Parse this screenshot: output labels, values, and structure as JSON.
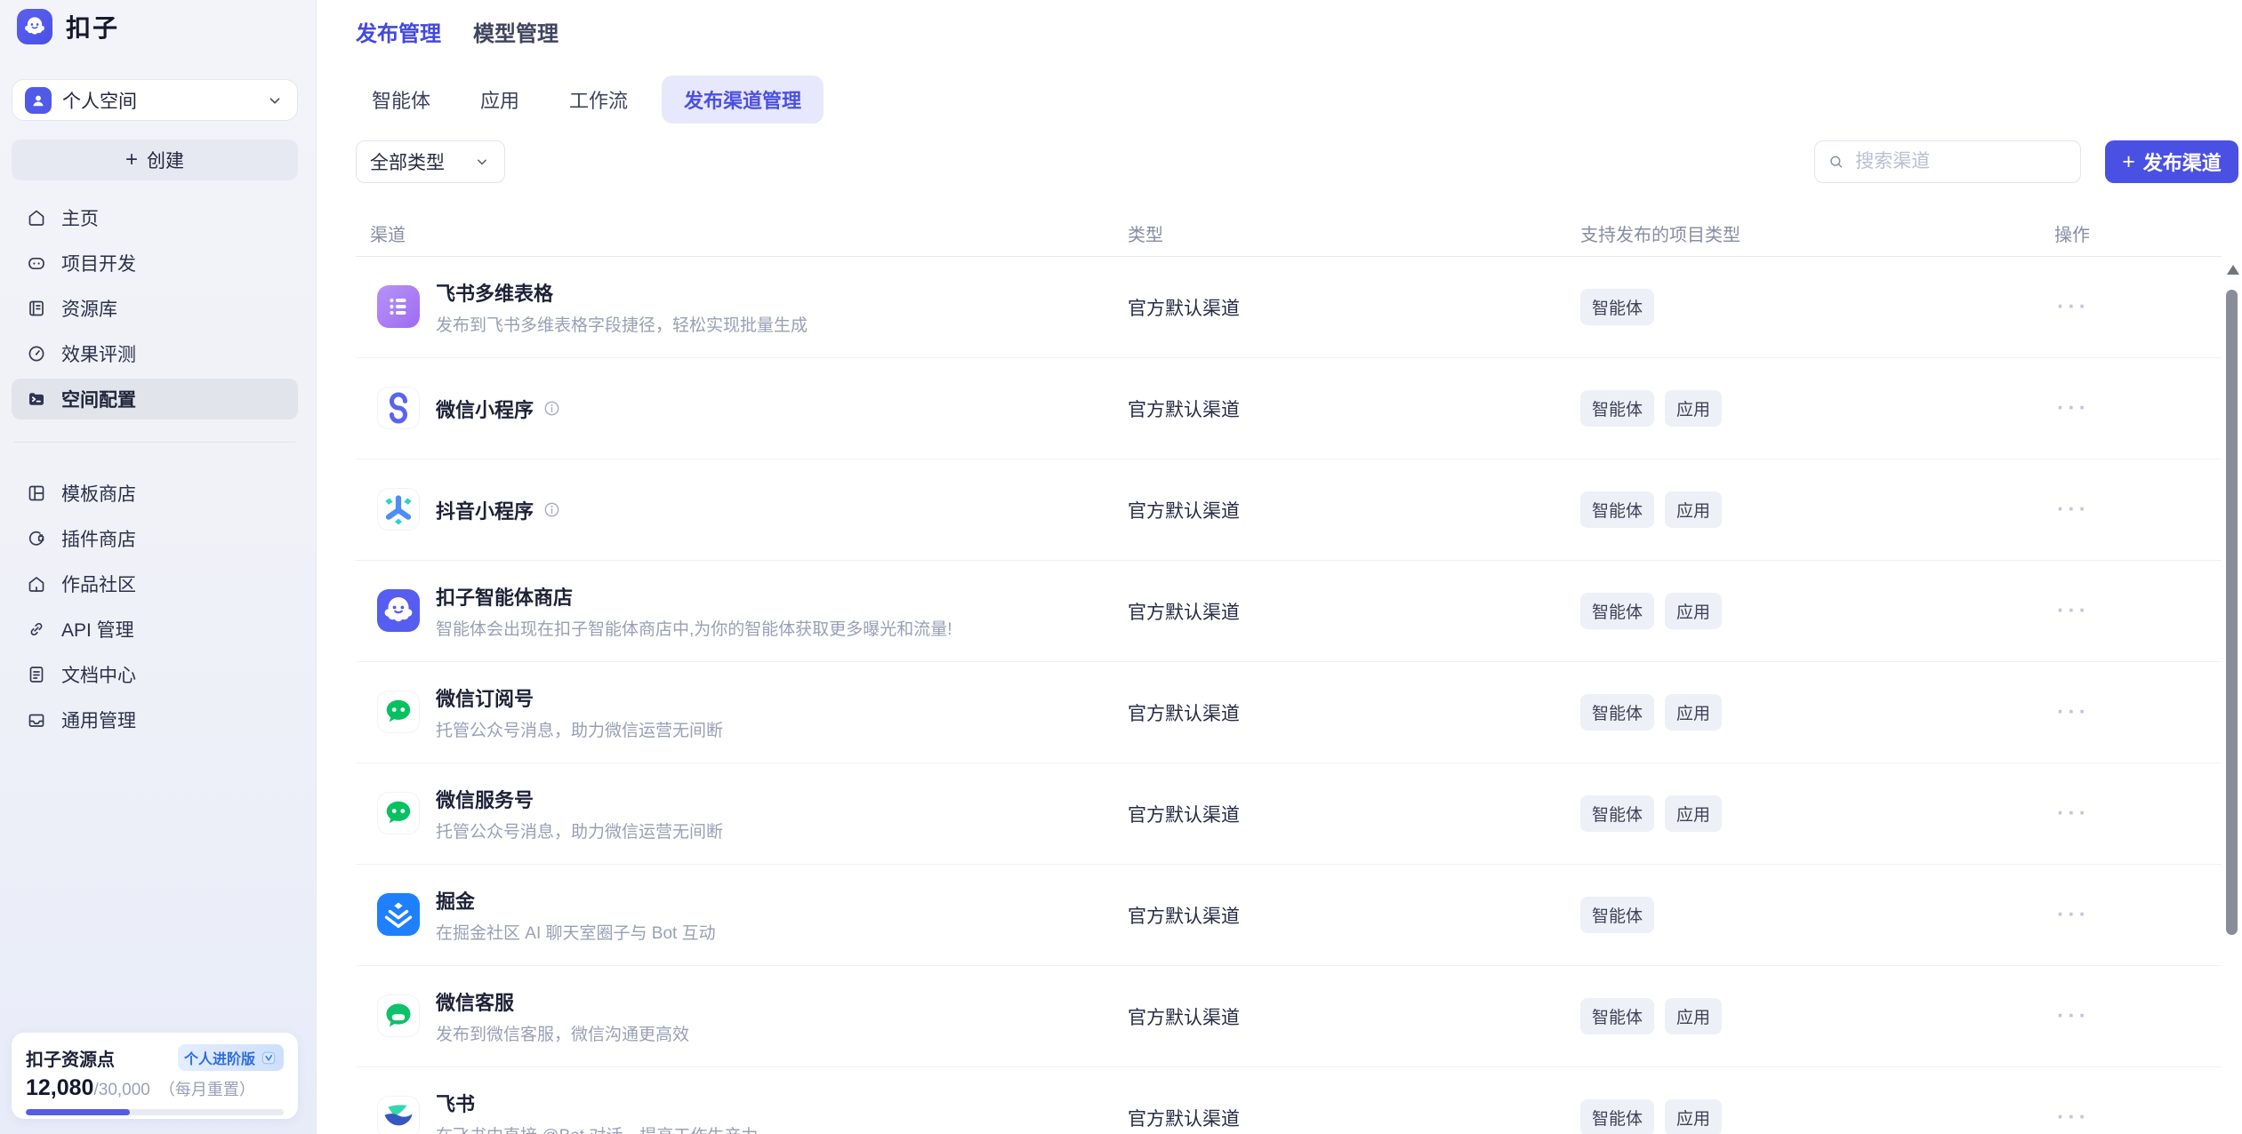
{
  "colors": {
    "accent": "#4B50E4",
    "tab_active_bg": "#E7E8FC",
    "sidebar_active_bg": "#E2E4EC",
    "wechat_green": "#07C160",
    "juejin_blue": "#1E80FF",
    "coze_indigo": "#575DF1",
    "feishu_base_purple": "#9E6BF3",
    "douyin_blue": "#4D8DF6",
    "douyin_cyan": "#2FD3C5",
    "feishu_teal": "#35D6AE",
    "feishu_navy": "#3757C0",
    "progress_fill": "#575CE5"
  },
  "sidebar": {
    "logo_title": "扣子",
    "workspace": {
      "label": "个人空间",
      "icon": "workspace-avatar"
    },
    "create": {
      "plus": "+",
      "label": "创建"
    },
    "menu_top": [
      {
        "label": "主页",
        "icon": "home-icon",
        "active": false
      },
      {
        "label": "项目开发",
        "icon": "bot-face-icon",
        "active": false
      },
      {
        "label": "资源库",
        "icon": "library-icon",
        "active": false
      },
      {
        "label": "效果评测",
        "icon": "gauge-icon",
        "active": false
      },
      {
        "label": "空间配置",
        "icon": "terminal-icon",
        "active": true
      }
    ],
    "menu_bottom": [
      {
        "label": "模板商店",
        "icon": "template-icon"
      },
      {
        "label": "插件商店",
        "icon": "plugin-icon"
      },
      {
        "label": "作品社区",
        "icon": "community-icon"
      },
      {
        "label": "API 管理",
        "icon": "api-link-icon"
      },
      {
        "label": "文档中心",
        "icon": "docs-icon"
      },
      {
        "label": "通用管理",
        "icon": "inbox-icon"
      }
    ],
    "resource_card": {
      "title": "扣子资源点",
      "badge": "个人进阶版",
      "used": "12,080",
      "total": "/30,000",
      "note": "（每月重置）",
      "progress_percent": 40.3
    }
  },
  "topnav": [
    {
      "label": "发布管理",
      "active": true
    },
    {
      "label": "模型管理",
      "active": false
    }
  ],
  "tabs": [
    {
      "label": "智能体",
      "active": false
    },
    {
      "label": "应用",
      "active": false
    },
    {
      "label": "工作流",
      "active": false
    },
    {
      "label": "发布渠道管理",
      "active": true
    }
  ],
  "controls": {
    "filter_value": "全部类型",
    "search_placeholder": "搜索渠道",
    "plus": "+",
    "publish_label": "发布渠道"
  },
  "table": {
    "headers": [
      "渠道",
      "类型",
      "支持发布的项目类型",
      "操作"
    ],
    "ellipsis": "···"
  },
  "channels": [
    {
      "name": "飞书多维表格",
      "desc": "发布到飞书多维表格字段捷径，轻松实现批量生成",
      "type": "官方默认渠道",
      "tags": [
        "智能体"
      ],
      "icon": "feishu-base-icon"
    },
    {
      "name": "微信小程序",
      "info": true,
      "type": "官方默认渠道",
      "tags": [
        "智能体",
        "应用"
      ],
      "icon": "wechat-miniprogram-icon"
    },
    {
      "name": "抖音小程序",
      "info": true,
      "type": "官方默认渠道",
      "tags": [
        "智能体",
        "应用"
      ],
      "icon": "douyin-miniprogram-icon"
    },
    {
      "name": "扣子智能体商店",
      "desc": "智能体会出现在扣子智能体商店中,为你的智能体获取更多曝光和流量!",
      "type": "官方默认渠道",
      "tags": [
        "智能体",
        "应用"
      ],
      "icon": "coze-store-icon"
    },
    {
      "name": "微信订阅号",
      "desc": "托管公众号消息，助力微信运营无间断",
      "type": "官方默认渠道",
      "tags": [
        "智能体",
        "应用"
      ],
      "icon": "wechat-subscription-icon"
    },
    {
      "name": "微信服务号",
      "desc": "托管公众号消息，助力微信运营无间断",
      "type": "官方默认渠道",
      "tags": [
        "智能体",
        "应用"
      ],
      "icon": "wechat-service-icon"
    },
    {
      "name": "掘金",
      "desc": "在掘金社区 AI 聊天室圈子与 Bot 互动",
      "type": "官方默认渠道",
      "tags": [
        "智能体"
      ],
      "icon": "juejin-icon"
    },
    {
      "name": "微信客服",
      "desc": "发布到微信客服，微信沟通更高效",
      "type": "官方默认渠道",
      "tags": [
        "智能体",
        "应用"
      ],
      "icon": "wechat-kefu-icon"
    },
    {
      "name": "飞书",
      "desc": "在飞书中直接 @Bot 对话，提高工作生产力",
      "type": "官方默认渠道",
      "tags": [
        "智能体",
        "应用"
      ],
      "icon": "feishu-icon"
    }
  ]
}
